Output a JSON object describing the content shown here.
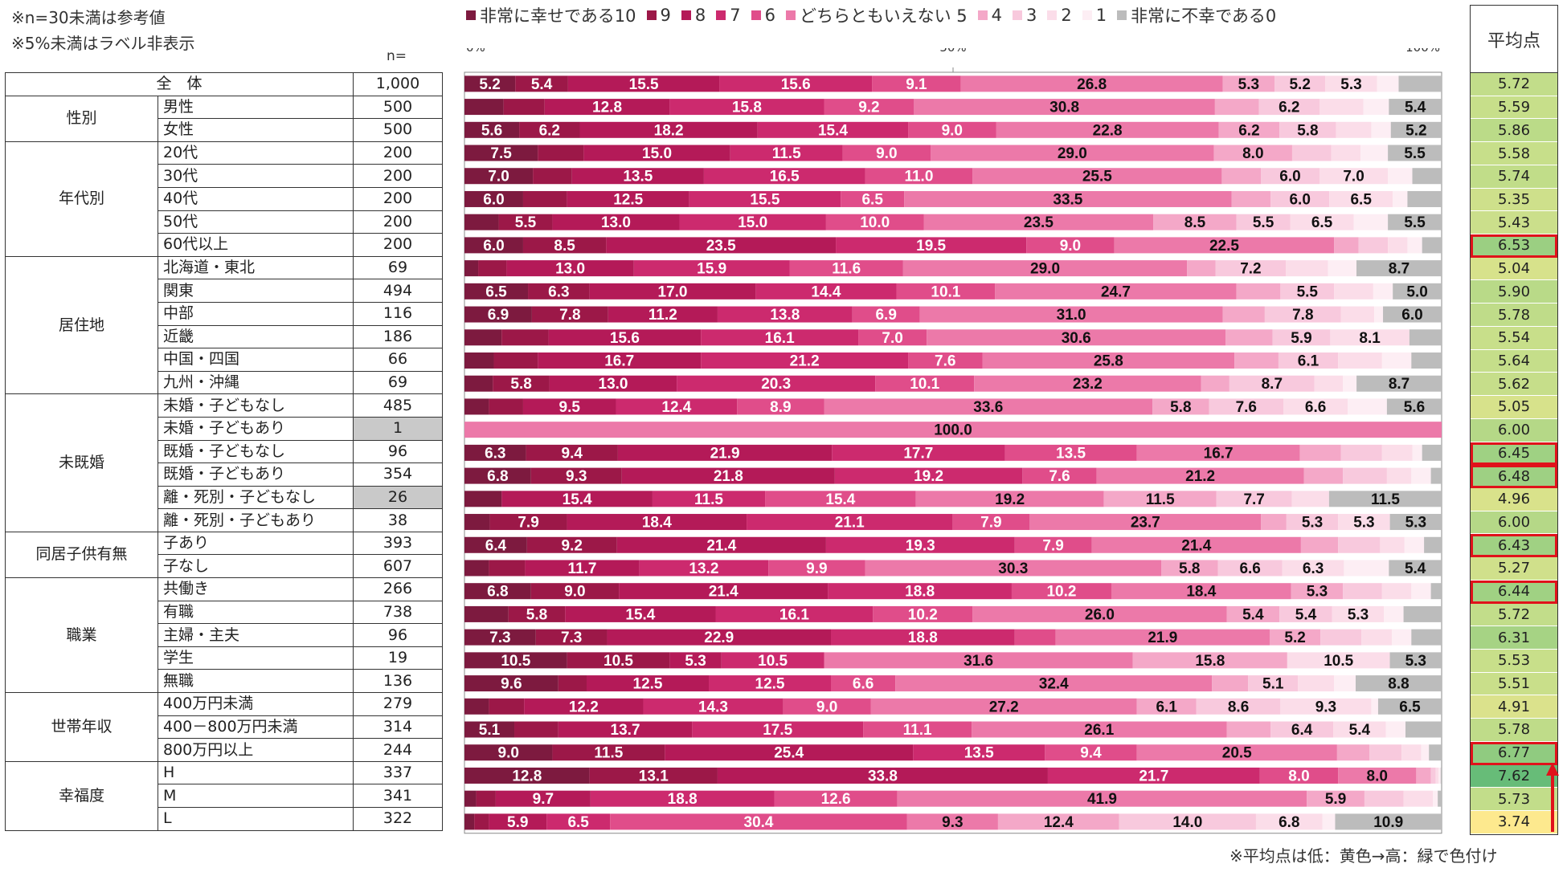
{
  "notes": [
    "※n=30未満は参考値",
    "※5%未満はラベル非表示"
  ],
  "n_header": "n=",
  "avg_header": "平均点",
  "footnote": "※平均点は低：黄色→高：緑で色付け",
  "legend": [
    {
      "label": "非常に幸せである10",
      "color": "#7d1a3f"
    },
    {
      "label": "9",
      "color": "#9c1848"
    },
    {
      "label": "8",
      "color": "#b41a58"
    },
    {
      "label": "7",
      "color": "#cc2a6e"
    },
    {
      "label": "6",
      "color": "#e04d8a"
    },
    {
      "label": "どちらともいえない 5",
      "color": "#ec79a9"
    },
    {
      "label": "4",
      "color": "#f4a8c8"
    },
    {
      "label": "3",
      "color": "#f8c9dd"
    },
    {
      "label": "2",
      "color": "#fbdde9"
    },
    {
      "label": "1",
      "color": "#fdeef4"
    },
    {
      "label": "非常に不幸である0",
      "color": "#bcbcbc"
    }
  ],
  "groups": [
    {
      "label": "",
      "rows": [
        {
          "label": "全　体",
          "n": "1,000",
          "gray": false
        }
      ]
    },
    {
      "label": "性別",
      "rows": [
        {
          "label": "男性",
          "n": "500"
        },
        {
          "label": "女性",
          "n": "500"
        }
      ]
    },
    {
      "label": "年代別",
      "rows": [
        {
          "label": "20代",
          "n": "200"
        },
        {
          "label": "30代",
          "n": "200"
        },
        {
          "label": "40代",
          "n": "200"
        },
        {
          "label": "50代",
          "n": "200"
        },
        {
          "label": "60代以上",
          "n": "200"
        }
      ]
    },
    {
      "label": "居住地",
      "rows": [
        {
          "label": "北海道・東北",
          "n": "69"
        },
        {
          "label": "関東",
          "n": "494"
        },
        {
          "label": "中部",
          "n": "116"
        },
        {
          "label": "近畿",
          "n": "186"
        },
        {
          "label": "中国・四国",
          "n": "66"
        },
        {
          "label": "九州・沖縄",
          "n": "69"
        }
      ]
    },
    {
      "label": "未既婚",
      "rows": [
        {
          "label": "未婚・子どもなし",
          "n": "485"
        },
        {
          "label": "未婚・子どもあり",
          "n": "1",
          "gray": true
        },
        {
          "label": "既婚・子どもなし",
          "n": "96"
        },
        {
          "label": "既婚・子どもあり",
          "n": "354"
        },
        {
          "label": "離・死別・子どもなし",
          "n": "26",
          "gray": true
        },
        {
          "label": "離・死別・子どもあり",
          "n": "38"
        }
      ]
    },
    {
      "label": "同居子供有無",
      "rows": [
        {
          "label": "子あり",
          "n": "393"
        },
        {
          "label": "子なし",
          "n": "607"
        }
      ]
    },
    {
      "label": "職業",
      "rows": [
        {
          "label": "共働き",
          "n": "266"
        },
        {
          "label": "有職",
          "n": "738"
        },
        {
          "label": "主婦・主夫",
          "n": "96"
        },
        {
          "label": "学生",
          "n": "19"
        },
        {
          "label": "無職",
          "n": "136"
        }
      ]
    },
    {
      "label": "世帯年収",
      "rows": [
        {
          "label": "400万円未満",
          "n": "279"
        },
        {
          "label": "400－800万円未満",
          "n": "314"
        },
        {
          "label": "800万円以上",
          "n": "244"
        }
      ]
    },
    {
      "label": "幸福度",
      "rows": [
        {
          "label": "H",
          "n": "337"
        },
        {
          "label": "M",
          "n": "341"
        },
        {
          "label": "L",
          "n": "322"
        }
      ]
    }
  ],
  "chart_data": {
    "type": "bar",
    "orientation": "horizontal-stacked-100",
    "x_ticks": [
      "0%",
      "50%",
      "100%"
    ],
    "xlim": [
      0,
      100
    ],
    "grid": false,
    "legend_position": "top",
    "series_names": [
      "非常に幸せである10",
      "9",
      "8",
      "7",
      "6",
      "どちらともいえない 5",
      "4",
      "3",
      "2",
      "1",
      "非常に不幸である0"
    ],
    "label_threshold": 5,
    "rows": [
      {
        "category": "全体",
        "values": [
          5.2,
          5.4,
          15.5,
          15.6,
          9.1,
          26.8,
          5.3,
          5.2,
          5.3,
          2.2,
          4.4
        ],
        "avg": 5.72,
        "highlight": false
      },
      {
        "category": "男性",
        "values": [
          4.0,
          4.2,
          12.8,
          15.8,
          9.2,
          30.8,
          4.5,
          6.2,
          4.5,
          2.6,
          5.4
        ],
        "avg": 5.59,
        "highlight": false
      },
      {
        "category": "女性",
        "values": [
          5.6,
          6.2,
          18.2,
          15.4,
          9.0,
          22.8,
          6.2,
          5.8,
          3.6,
          2.0,
          5.2
        ],
        "avg": 5.86,
        "highlight": false
      },
      {
        "category": "20代",
        "values": [
          7.5,
          4.7,
          15.0,
          11.5,
          9.0,
          29.0,
          8.0,
          4.0,
          3.0,
          2.8,
          5.5
        ],
        "avg": 5.58,
        "highlight": false
      },
      {
        "category": "30代",
        "values": [
          7.0,
          4.0,
          13.5,
          16.5,
          11.0,
          25.5,
          4.0,
          6.0,
          7.0,
          2.5,
          3.0
        ],
        "avg": 5.74,
        "highlight": false
      },
      {
        "category": "40代",
        "values": [
          6.0,
          4.5,
          12.5,
          15.5,
          6.5,
          33.5,
          4.0,
          6.0,
          6.5,
          1.5,
          3.5
        ],
        "avg": 5.35,
        "highlight": false
      },
      {
        "category": "50代",
        "values": [
          3.5,
          5.5,
          13.0,
          15.0,
          10.0,
          23.5,
          8.5,
          5.5,
          6.5,
          3.5,
          5.5
        ],
        "avg": 5.43,
        "highlight": false
      },
      {
        "category": "60代以上",
        "values": [
          6.0,
          8.5,
          23.5,
          19.5,
          9.0,
          22.5,
          2.5,
          3.0,
          2.0,
          1.5,
          2.0
        ],
        "avg": 6.53,
        "highlight": true
      },
      {
        "category": "北海道・東北",
        "values": [
          1.4,
          2.9,
          13.0,
          15.9,
          11.6,
          29.0,
          2.9,
          7.2,
          4.3,
          2.9,
          8.7
        ],
        "avg": 5.04,
        "highlight": false
      },
      {
        "category": "関東",
        "values": [
          6.5,
          6.3,
          17.0,
          14.4,
          10.1,
          24.7,
          4.5,
          5.5,
          4.0,
          2.0,
          5.0
        ],
        "avg": 5.9,
        "highlight": false
      },
      {
        "category": "中部",
        "values": [
          6.9,
          7.8,
          11.2,
          13.8,
          6.9,
          31.0,
          4.3,
          7.8,
          3.4,
          0.9,
          6.0
        ],
        "avg": 5.78,
        "highlight": false
      },
      {
        "category": "近畿",
        "values": [
          3.8,
          4.8,
          15.6,
          16.1,
          7.0,
          30.6,
          4.8,
          5.9,
          8.1,
          0.0,
          3.3
        ],
        "avg": 5.54,
        "highlight": false
      },
      {
        "category": "中国・四国",
        "values": [
          3.0,
          4.5,
          16.7,
          21.2,
          7.6,
          25.8,
          4.5,
          6.1,
          4.5,
          3.0,
          3.1
        ],
        "avg": 5.64,
        "highlight": false
      },
      {
        "category": "九州・沖縄",
        "values": [
          2.9,
          5.8,
          13.0,
          20.3,
          10.1,
          23.2,
          2.9,
          8.7,
          2.9,
          1.4,
          8.7
        ],
        "avg": 5.62,
        "highlight": false
      },
      {
        "category": "未婚・子どもなし",
        "values": [
          2.5,
          3.5,
          9.5,
          12.4,
          8.9,
          33.6,
          5.8,
          7.6,
          6.6,
          4.0,
          5.6
        ],
        "avg": 5.05,
        "highlight": false
      },
      {
        "category": "未婚・子どもあり",
        "values": [
          0,
          0,
          0,
          0,
          0,
          100.0,
          0,
          0,
          0,
          0,
          0
        ],
        "avg": 6.0,
        "highlight": false
      },
      {
        "category": "既婚・子どもなし",
        "values": [
          6.3,
          9.4,
          21.9,
          17.7,
          13.5,
          16.7,
          4.2,
          4.2,
          3.1,
          1.0,
          2.0
        ],
        "avg": 6.45,
        "highlight": true
      },
      {
        "category": "既婚・子どもあり",
        "values": [
          6.8,
          9.3,
          21.8,
          19.2,
          7.6,
          21.2,
          4.0,
          4.5,
          2.5,
          2.0,
          1.1
        ],
        "avg": 6.48,
        "highlight": true
      },
      {
        "category": "離・死別・子どもなし",
        "values": [
          3.8,
          0,
          15.4,
          11.5,
          15.4,
          19.2,
          11.5,
          7.7,
          3.8,
          0,
          11.5
        ],
        "avg": 4.96,
        "highlight": false
      },
      {
        "category": "離・死別・子どもあり",
        "values": [
          2.6,
          7.9,
          18.4,
          21.1,
          7.9,
          23.7,
          2.6,
          5.3,
          5.3,
          0,
          5.3
        ],
        "avg": 6.0,
        "highlight": false
      },
      {
        "category": "子あり",
        "values": [
          6.4,
          9.2,
          21.4,
          19.3,
          7.9,
          21.4,
          3.8,
          4.3,
          2.5,
          2.0,
          1.8
        ],
        "avg": 6.43,
        "highlight": true
      },
      {
        "category": "子なし",
        "values": [
          2.5,
          3.7,
          11.7,
          13.2,
          9.9,
          30.3,
          5.8,
          6.6,
          6.3,
          4.6,
          5.4
        ],
        "avg": 5.27,
        "highlight": false
      },
      {
        "category": "共働き",
        "values": [
          6.8,
          9.0,
          21.4,
          18.8,
          10.2,
          18.4,
          5.3,
          4.0,
          3.0,
          2.0,
          1.1
        ],
        "avg": 6.44,
        "highlight": true
      },
      {
        "category": "有職",
        "values": [
          4.5,
          5.8,
          15.4,
          16.1,
          10.2,
          26.0,
          5.4,
          5.4,
          5.3,
          2.0,
          3.9
        ],
        "avg": 5.72,
        "highlight": false
      },
      {
        "category": "主婦・主夫",
        "values": [
          7.3,
          7.3,
          22.9,
          18.8,
          4.2,
          21.9,
          5.2,
          4.2,
          3.1,
          2.0,
          3.1
        ],
        "avg": 6.31,
        "highlight": false
      },
      {
        "category": "学生",
        "values": [
          10.5,
          10.5,
          5.3,
          10.5,
          0,
          31.6,
          15.8,
          0,
          10.5,
          0,
          5.3
        ],
        "avg": 5.53,
        "highlight": false
      },
      {
        "category": "無職",
        "values": [
          9.6,
          2.9,
          12.5,
          12.5,
          6.6,
          32.4,
          3.7,
          5.1,
          3.7,
          2.2,
          8.8
        ],
        "avg": 5.51,
        "highlight": false
      },
      {
        "category": "400万円未満",
        "values": [
          2.5,
          3.6,
          12.2,
          14.3,
          9.0,
          27.2,
          6.1,
          8.6,
          9.3,
          0.7,
          6.5
        ],
        "avg": 4.91,
        "highlight": false
      },
      {
        "category": "400－800万円未満",
        "values": [
          5.1,
          4.5,
          13.7,
          17.5,
          11.1,
          26.1,
          4.5,
          6.4,
          5.4,
          2.0,
          3.7
        ],
        "avg": 5.78,
        "highlight": false
      },
      {
        "category": "800万円以上",
        "values": [
          9.0,
          11.5,
          25.4,
          13.5,
          9.4,
          20.5,
          3.3,
          3.3,
          2.0,
          0.8,
          1.3
        ],
        "avg": 6.77,
        "highlight": true
      },
      {
        "category": "H",
        "values": [
          12.8,
          13.1,
          33.8,
          21.7,
          8.0,
          8.0,
          1.5,
          0.5,
          0.3,
          0.2,
          0.1
        ],
        "avg": 7.62,
        "highlight": false
      },
      {
        "category": "M",
        "values": [
          1.2,
          2.0,
          9.7,
          18.8,
          12.6,
          41.9,
          5.9,
          4.0,
          3.0,
          0.5,
          0.4
        ],
        "avg": 5.73,
        "highlight": false
      },
      {
        "category": "L",
        "values": [
          1.0,
          1.5,
          5.9,
          6.5,
          30.4,
          9.3,
          12.4,
          14.0,
          6.8,
          1.3,
          10.9
        ],
        "avg": 3.74,
        "highlight": false
      }
    ]
  }
}
